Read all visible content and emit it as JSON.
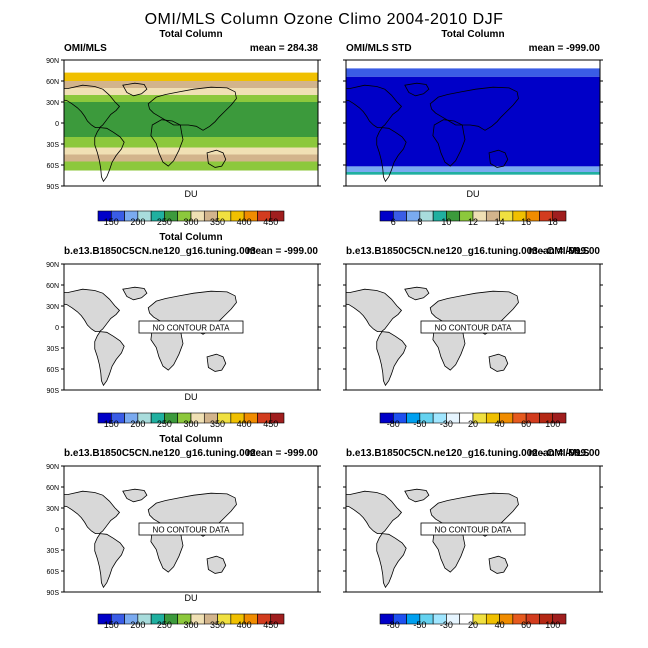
{
  "title": "OMI/MLS Column Ozone Climo 2004-2010 DJF",
  "colors": {
    "land": "#d8d8d8",
    "ocean": "#ffffff",
    "frame": "#000000"
  },
  "chart_data": [
    {
      "type": "heatmap",
      "id": "p1",
      "center_title": "Total Column",
      "left_title": "OMI/MLS",
      "right_title": "mean = 284.38",
      "xlabel": "",
      "ylabel": "",
      "lat_ticks": [
        "90N",
        "60N",
        "30N",
        "0",
        "30S",
        "60S",
        "90S"
      ],
      "has_data": true,
      "no_data_label": "",
      "fill_description": "zonal bands of total column ozone",
      "bands": [
        {
          "lat_from": 90,
          "lat_to": 72,
          "value": "missing"
        },
        {
          "lat_from": 72,
          "lat_to": 60,
          "value": 390
        },
        {
          "lat_from": 60,
          "lat_to": 50,
          "value": 340
        },
        {
          "lat_from": 50,
          "lat_to": 40,
          "value": 320
        },
        {
          "lat_from": 40,
          "lat_to": 30,
          "value": 285
        },
        {
          "lat_from": 30,
          "lat_to": -10,
          "value": 265
        },
        {
          "lat_from": -10,
          "lat_to": -20,
          "value": 255
        },
        {
          "lat_from": -20,
          "lat_to": -35,
          "value": 280
        },
        {
          "lat_from": -35,
          "lat_to": -45,
          "value": 310
        },
        {
          "lat_from": -45,
          "lat_to": -55,
          "value": 330
        },
        {
          "lat_from": -55,
          "lat_to": -68,
          "value": 285
        },
        {
          "lat_from": -68,
          "lat_to": -90,
          "value": "missing"
        }
      ],
      "colorbar": {
        "unit": "DU",
        "labels": [
          "150",
          "200",
          "250",
          "300",
          "350",
          "400",
          "450"
        ],
        "colors": [
          "#0000c8",
          "#3a5ce6",
          "#7aaaf0",
          "#a8dcdc",
          "#20b0a0",
          "#3c9a3c",
          "#8cc83c",
          "#f0e0b4",
          "#d2b48c",
          "#f0e040",
          "#f0c000",
          "#f08c00",
          "#d23c1e",
          "#a01e1e"
        ],
        "bounds": [
          125,
          150,
          175,
          200,
          225,
          250,
          275,
          300,
          325,
          350,
          375,
          400,
          425,
          450,
          475
        ]
      }
    },
    {
      "type": "heatmap",
      "id": "p2",
      "center_title": "Total Column",
      "left_title": "OMI/MLS STD",
      "right_title": "mean = -999.00",
      "xlabel": "",
      "ylabel": "",
      "lat_ticks": [],
      "has_data": true,
      "no_data_label": "",
      "fill_description": "standard deviation, mostly lowest bin",
      "bands": [
        {
          "lat_from": 90,
          "lat_to": 78,
          "value": "missing"
        },
        {
          "lat_from": 78,
          "lat_to": 66,
          "value": 6.5
        },
        {
          "lat_from": 66,
          "lat_to": -62,
          "value": 5
        },
        {
          "lat_from": -62,
          "lat_to": -70,
          "value": 7
        },
        {
          "lat_from": -70,
          "lat_to": -74,
          "value": 9
        },
        {
          "lat_from": -74,
          "lat_to": -90,
          "value": "missing"
        }
      ],
      "colorbar": {
        "unit": "DU",
        "labels": [
          "6",
          "8",
          "10",
          "12",
          "14",
          "16",
          "18"
        ],
        "colors": [
          "#0000c8",
          "#3a5ce6",
          "#7aaaf0",
          "#a8dcdc",
          "#20b0a0",
          "#3c9a3c",
          "#8cc83c",
          "#f0e0b4",
          "#d2b48c",
          "#f0e040",
          "#f0c000",
          "#f08c00",
          "#d23c1e",
          "#a01e1e"
        ],
        "bounds": [
          5,
          6,
          7,
          8,
          9,
          10,
          11,
          12,
          13,
          14,
          15,
          16,
          17,
          18,
          19
        ]
      }
    },
    {
      "type": "heatmap",
      "id": "p3",
      "center_title": "Total Column",
      "left_title": "b.e13.B1850C5CN.ne120_g16.tuning.003",
      "right_title": "mean = -999.00",
      "xlabel": "",
      "ylabel": "",
      "lat_ticks": [
        "90N",
        "60N",
        "30N",
        "0",
        "30S",
        "60S",
        "90S"
      ],
      "has_data": false,
      "no_data_label": "NO CONTOUR DATA",
      "bands": [],
      "colorbar": {
        "unit": "DU",
        "labels": [
          "150",
          "200",
          "250",
          "300",
          "350",
          "400",
          "450"
        ],
        "colors": [
          "#0000c8",
          "#3a5ce6",
          "#7aaaf0",
          "#a8dcdc",
          "#20b0a0",
          "#3c9a3c",
          "#8cc83c",
          "#f0e0b4",
          "#d2b48c",
          "#f0e040",
          "#f0c000",
          "#f08c00",
          "#d23c1e",
          "#a01e1e"
        ],
        "bounds": [
          125,
          150,
          175,
          200,
          225,
          250,
          275,
          300,
          325,
          350,
          375,
          400,
          425,
          450,
          475
        ]
      }
    },
    {
      "type": "heatmap",
      "id": "p4",
      "center_title": "",
      "left_title": "b.e13.B1850C5CN.ne120_g16.tuning.003 - OMI/MLS",
      "right_title": "mean = -999.00",
      "xlabel": "",
      "ylabel": "",
      "lat_ticks": [],
      "has_data": false,
      "no_data_label": "NO CONTOUR DATA",
      "bands": [],
      "colorbar": {
        "unit": "",
        "labels": [
          "-80",
          "-50",
          "-30",
          "20",
          "40",
          "60",
          "100"
        ],
        "colors": [
          "#0000c8",
          "#1e50f0",
          "#00a0f0",
          "#64d2f0",
          "#a0e6ff",
          "#e6f5ff",
          "#ffffff",
          "#f0e040",
          "#f0c000",
          "#f08c00",
          "#e65a1e",
          "#d23c1e",
          "#b42814",
          "#a01e1e"
        ],
        "bounds": [
          -100,
          -80,
          -65,
          -50,
          -40,
          -30,
          -20,
          20,
          30,
          40,
          50,
          60,
          80,
          100,
          120
        ]
      }
    },
    {
      "type": "heatmap",
      "id": "p5",
      "center_title": "Total Column",
      "left_title": "b.e13.B1850C5CN.ne120_g16.tuning.002",
      "right_title": "mean = -999.00",
      "xlabel": "",
      "ylabel": "",
      "lat_ticks": [
        "90N",
        "60N",
        "30N",
        "0",
        "30S",
        "60S",
        "90S"
      ],
      "has_data": false,
      "no_data_label": "NO CONTOUR DATA",
      "bands": [],
      "colorbar": {
        "unit": "DU",
        "labels": [
          "150",
          "200",
          "250",
          "300",
          "350",
          "400",
          "450"
        ],
        "colors": [
          "#0000c8",
          "#3a5ce6",
          "#7aaaf0",
          "#a8dcdc",
          "#20b0a0",
          "#3c9a3c",
          "#8cc83c",
          "#f0e0b4",
          "#d2b48c",
          "#f0e040",
          "#f0c000",
          "#f08c00",
          "#d23c1e",
          "#a01e1e"
        ],
        "bounds": [
          125,
          150,
          175,
          200,
          225,
          250,
          275,
          300,
          325,
          350,
          375,
          400,
          425,
          450,
          475
        ]
      }
    },
    {
      "type": "heatmap",
      "id": "p6",
      "center_title": "",
      "left_title": "b.e13.B1850C5CN.ne120_g16.tuning.002 - OMI/MLS",
      "right_title": "mean = -999.00",
      "xlabel": "",
      "ylabel": "",
      "lat_ticks": [],
      "has_data": false,
      "no_data_label": "NO CONTOUR DATA",
      "bands": [],
      "colorbar": {
        "unit": "",
        "labels": [
          "-80",
          "-50",
          "-30",
          "20",
          "40",
          "60",
          "100"
        ],
        "colors": [
          "#0000c8",
          "#1e50f0",
          "#00a0f0",
          "#64d2f0",
          "#a0e6ff",
          "#e6f5ff",
          "#ffffff",
          "#f0e040",
          "#f0c000",
          "#f08c00",
          "#e65a1e",
          "#d23c1e",
          "#b42814",
          "#a01e1e"
        ],
        "bounds": [
          -100,
          -80,
          -65,
          -50,
          -40,
          -30,
          -20,
          20,
          30,
          40,
          50,
          60,
          80,
          100,
          120
        ]
      }
    }
  ]
}
